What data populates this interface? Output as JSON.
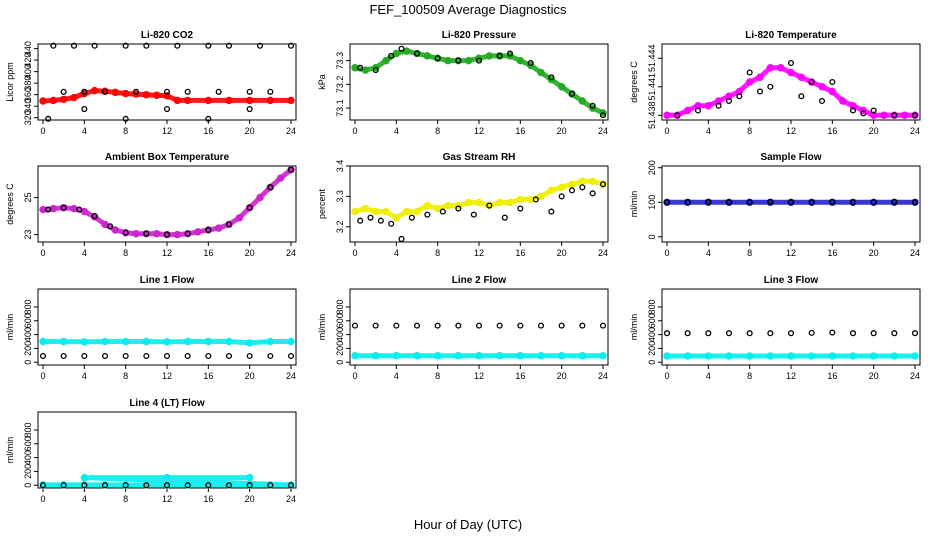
{
  "figure": {
    "title": "FEF_100509  Average Diagnostics",
    "xlabel": "Hour of Day (UTC)"
  },
  "chart_data": [
    {
      "type": "scatter",
      "title": "Li-820 CO2",
      "ylabel": "Licor ppm",
      "xlim": [
        0,
        24
      ],
      "ylim": [
        316,
        448
      ],
      "xticks": [
        0,
        4,
        8,
        12,
        16,
        20,
        24
      ],
      "yticks": [
        320,
        340,
        360,
        380,
        400,
        420,
        440
      ],
      "series": [
        {
          "name": "average",
          "color": "#ff0000",
          "x": [
            0,
            1,
            2,
            3,
            4,
            5,
            6,
            7,
            8,
            9,
            10,
            11,
            12,
            13,
            14,
            16,
            18,
            20,
            22,
            24
          ],
          "y": [
            349,
            350,
            352,
            355,
            362,
            367,
            366,
            364,
            362,
            361,
            360,
            359,
            358,
            350,
            350,
            350,
            350,
            350,
            350,
            350
          ]
        },
        {
          "name": "samples",
          "color": "#000000",
          "x": [
            1,
            2,
            3,
            4,
            5,
            6,
            8,
            9,
            10,
            12,
            13,
            14,
            16,
            17,
            18,
            20,
            21,
            22,
            24,
            4,
            12,
            20,
            0.5,
            8,
            16
          ],
          "y": [
            445,
            365,
            445,
            365,
            445,
            365,
            445,
            365,
            445,
            365,
            445,
            365,
            445,
            365,
            445,
            365,
            445,
            365,
            445,
            335,
            335,
            335,
            318,
            318,
            318
          ]
        }
      ]
    },
    {
      "type": "scatter",
      "title": "Li-820 Pressure",
      "ylabel": "kPa",
      "xlim": [
        0,
        24
      ],
      "ylim": [
        73.05,
        73.37
      ],
      "xticks": [
        0,
        4,
        8,
        12,
        16,
        20,
        24
      ],
      "yticks": [
        73.1,
        73.2,
        73.3
      ],
      "series": [
        {
          "name": "average",
          "color": "#22aa22",
          "x": [
            0,
            1,
            2,
            3,
            4,
            5,
            6,
            7,
            8,
            9,
            10,
            11,
            12,
            13,
            14,
            15,
            16,
            17,
            18,
            19,
            20,
            21,
            22,
            23,
            24
          ],
          "y": [
            73.27,
            73.26,
            73.27,
            73.3,
            73.33,
            73.34,
            73.33,
            73.32,
            73.31,
            73.3,
            73.3,
            73.3,
            73.31,
            73.32,
            73.32,
            73.32,
            73.3,
            73.28,
            73.25,
            73.22,
            73.19,
            73.16,
            73.13,
            73.1,
            73.08
          ]
        },
        {
          "name": "samples",
          "color": "#000000",
          "x": [
            0.5,
            2,
            3.5,
            4.5,
            6,
            8,
            10,
            12,
            14,
            15,
            17,
            19,
            21,
            23,
            24
          ],
          "y": [
            73.27,
            73.26,
            73.32,
            73.35,
            73.33,
            73.31,
            73.3,
            73.3,
            73.32,
            73.33,
            73.29,
            73.23,
            73.16,
            73.11,
            73.07
          ]
        }
      ]
    },
    {
      "type": "scatter",
      "title": "Li-820 Temperature",
      "ylabel": "degrees C",
      "xlim": [
        0,
        24
      ],
      "ylim": [
        51.4375,
        51.4455
      ],
      "xticks": [
        0,
        4,
        8,
        12,
        16,
        20,
        24
      ],
      "yticks": [
        51.438,
        51.441,
        51.444
      ],
      "series": [
        {
          "name": "average",
          "color": "#ff00ff",
          "x": [
            0,
            1,
            2,
            3,
            4,
            5,
            6,
            7,
            8,
            9,
            10,
            11,
            12,
            13,
            14,
            15,
            16,
            17,
            18,
            19,
            20,
            21,
            22,
            23,
            24
          ],
          "y": [
            51.438,
            51.438,
            51.4385,
            51.439,
            51.439,
            51.4395,
            51.44,
            51.4405,
            51.4415,
            51.442,
            51.443,
            51.443,
            51.4425,
            51.442,
            51.4415,
            51.441,
            51.4405,
            51.4395,
            51.439,
            51.4385,
            51.438,
            51.438,
            51.438,
            51.438,
            51.438
          ]
        },
        {
          "name": "samples",
          "color": "#000000",
          "x": [
            1,
            3,
            5,
            6,
            7,
            8,
            9,
            10,
            12,
            13,
            14,
            15,
            16,
            18,
            19,
            20,
            22,
            24
          ],
          "y": [
            51.438,
            51.4385,
            51.439,
            51.4395,
            51.44,
            51.4425,
            51.4405,
            51.441,
            51.4435,
            51.44,
            51.4415,
            51.4395,
            51.4415,
            51.4385,
            51.4382,
            51.4385,
            51.438,
            51.438
          ]
        }
      ]
    },
    {
      "type": "scatter",
      "title": "Ambient Box Temperature",
      "ylabel": "degrees C",
      "xlim": [
        0,
        24
      ],
      "ylim": [
        22.6,
        26.7
      ],
      "xticks": [
        0,
        4,
        8,
        12,
        16,
        20,
        24
      ],
      "yticks": [
        23,
        25
      ],
      "series": [
        {
          "name": "average",
          "color": "#cc22cc",
          "x": [
            0,
            1,
            2,
            3,
            4,
            5,
            6,
            7,
            8,
            9,
            10,
            11,
            12,
            13,
            14,
            15,
            16,
            17,
            18,
            19,
            20,
            21,
            22,
            23,
            24
          ],
          "y": [
            24.35,
            24.4,
            24.45,
            24.4,
            24.25,
            23.95,
            23.55,
            23.25,
            23.1,
            23.05,
            23.05,
            23.05,
            23.0,
            23.0,
            23.05,
            23.15,
            23.25,
            23.35,
            23.55,
            23.9,
            24.45,
            25.0,
            25.55,
            26.05,
            26.5
          ]
        },
        {
          "name": "samples",
          "color": "#000000",
          "x": [
            0.5,
            2,
            3.5,
            5,
            6.5,
            8,
            10,
            12,
            14,
            16,
            18,
            20,
            22,
            24
          ],
          "y": [
            24.35,
            24.45,
            24.35,
            24.0,
            23.45,
            23.1,
            23.05,
            23.0,
            23.05,
            23.25,
            23.55,
            24.45,
            25.55,
            26.5
          ]
        }
      ]
    },
    {
      "type": "scatter",
      "title": "Gas Stream RH",
      "ylabel": "percent",
      "xlim": [
        0,
        24
      ],
      "ylim": [
        3.15,
        3.4
      ],
      "xticks": [
        0,
        4,
        8,
        12,
        16,
        20,
        24
      ],
      "yticks": [
        3.2,
        3.3,
        3.4
      ],
      "series": [
        {
          "name": "average",
          "color": "#eeee00",
          "x": [
            0,
            1,
            2,
            3,
            4,
            5,
            6,
            7,
            8,
            9,
            10,
            11,
            12,
            13,
            14,
            15,
            16,
            17,
            18,
            19,
            20,
            21,
            22,
            23,
            24
          ],
          "y": [
            3.25,
            3.26,
            3.25,
            3.25,
            3.23,
            3.25,
            3.25,
            3.27,
            3.26,
            3.27,
            3.27,
            3.28,
            3.28,
            3.27,
            3.28,
            3.28,
            3.29,
            3.29,
            3.3,
            3.32,
            3.33,
            3.34,
            3.35,
            3.35,
            3.34
          ]
        },
        {
          "name": "samples",
          "color": "#000000",
          "x": [
            0.5,
            1.5,
            2.5,
            3.5,
            4.5,
            5.5,
            7,
            8.5,
            10,
            11.5,
            13,
            14.5,
            16,
            17.5,
            19,
            20,
            21,
            22,
            23,
            24
          ],
          "y": [
            3.22,
            3.23,
            3.22,
            3.21,
            3.16,
            3.23,
            3.24,
            3.25,
            3.26,
            3.24,
            3.27,
            3.23,
            3.26,
            3.29,
            3.25,
            3.3,
            3.32,
            3.33,
            3.31,
            3.34
          ]
        }
      ]
    },
    {
      "type": "scatter",
      "title": "Sample Flow",
      "ylabel": "ml/min",
      "xlim": [
        0,
        24
      ],
      "ylim": [
        -15,
        205
      ],
      "xticks": [
        0,
        4,
        8,
        12,
        16,
        20,
        24
      ],
      "yticks": [
        0,
        100,
        200
      ],
      "series": [
        {
          "name": "average",
          "color": "#2222cc",
          "x": [
            0,
            2,
            4,
            6,
            8,
            10,
            12,
            14,
            16,
            18,
            20,
            22,
            24
          ],
          "y": [
            100,
            100,
            100,
            100,
            100,
            100,
            100,
            100,
            100,
            100,
            100,
            100,
            100
          ]
        },
        {
          "name": "samples",
          "color": "#000000",
          "x": [
            0,
            2,
            4,
            6,
            8,
            10,
            12,
            14,
            16,
            18,
            20,
            22,
            24
          ],
          "y": [
            100,
            100,
            101,
            100,
            100,
            101,
            100,
            100,
            101,
            100,
            100,
            101,
            100
          ]
        }
      ]
    },
    {
      "type": "scatter",
      "title": "Line 1 Flow",
      "ylabel": "ml/min",
      "xlim": [
        0,
        24
      ],
      "ylim": [
        -40,
        1060
      ],
      "xticks": [
        0,
        4,
        8,
        12,
        16,
        20,
        24
      ],
      "yticks": [
        0,
        200,
        400,
        600,
        800
      ],
      "series": [
        {
          "name": "cyan",
          "color": "#00eeee",
          "x": [
            0,
            2,
            4,
            6,
            8,
            10,
            12,
            14,
            16,
            18,
            20,
            22,
            24
          ],
          "y": [
            300,
            300,
            295,
            300,
            300,
            300,
            295,
            300,
            300,
            300,
            280,
            300,
            300
          ]
        },
        {
          "name": "black",
          "color": "#000000",
          "x": [
            0,
            2,
            4,
            6,
            8,
            10,
            12,
            14,
            16,
            18,
            20,
            22,
            24
          ],
          "y": [
            90,
            90,
            90,
            90,
            90,
            90,
            90,
            90,
            90,
            90,
            90,
            90,
            90
          ]
        }
      ]
    },
    {
      "type": "scatter",
      "title": "Line 2 Flow",
      "ylabel": "ml/min",
      "xlim": [
        0,
        24
      ],
      "ylim": [
        -40,
        1060
      ],
      "xticks": [
        0,
        4,
        8,
        12,
        16,
        20,
        24
      ],
      "yticks": [
        0,
        200,
        400,
        600,
        800
      ],
      "series": [
        {
          "name": "cyan",
          "color": "#00eeee",
          "x": [
            0,
            2,
            4,
            6,
            8,
            10,
            12,
            14,
            16,
            18,
            20,
            22,
            24
          ],
          "y": [
            95,
            95,
            95,
            95,
            95,
            95,
            95,
            95,
            95,
            95,
            95,
            95,
            95
          ]
        },
        {
          "name": "black",
          "color": "#000000",
          "x": [
            0,
            2,
            4,
            6,
            8,
            10,
            12,
            14,
            16,
            18,
            20,
            22,
            24
          ],
          "y": [
            530,
            530,
            530,
            530,
            530,
            530,
            530,
            530,
            530,
            530,
            530,
            530,
            530
          ]
        }
      ]
    },
    {
      "type": "scatter",
      "title": "Line 3 Flow",
      "ylabel": "ml/min",
      "xlim": [
        0,
        24
      ],
      "ylim": [
        -40,
        1060
      ],
      "xticks": [
        0,
        4,
        8,
        12,
        16,
        20,
        24
      ],
      "yticks": [
        0,
        200,
        400,
        600,
        800
      ],
      "series": [
        {
          "name": "cyan",
          "color": "#00eeee",
          "x": [
            0,
            2,
            4,
            6,
            8,
            10,
            12,
            14,
            16,
            18,
            20,
            22,
            24
          ],
          "y": [
            90,
            90,
            90,
            90,
            90,
            90,
            90,
            90,
            90,
            90,
            90,
            90,
            90
          ]
        },
        {
          "name": "black",
          "color": "#000000",
          "x": [
            0,
            2,
            4,
            6,
            8,
            10,
            12,
            14,
            16,
            18,
            20,
            22,
            24
          ],
          "y": [
            420,
            420,
            420,
            420,
            420,
            420,
            420,
            425,
            430,
            420,
            420,
            420,
            420
          ]
        }
      ]
    },
    {
      "type": "scatter",
      "title": "Line 4 (LT) Flow",
      "ylabel": "ml/min",
      "xlim": [
        0,
        24
      ],
      "ylim": [
        -40,
        1060
      ],
      "xticks": [
        0,
        4,
        8,
        12,
        16,
        20,
        24
      ],
      "yticks": [
        0,
        200,
        400,
        600,
        800
      ],
      "series": [
        {
          "name": "cyan",
          "color": "#00eeee",
          "x": [
            0,
            2,
            4,
            6,
            8,
            10,
            12,
            14,
            16,
            18,
            20,
            22,
            24,
            4,
            12,
            20
          ],
          "y": [
            5,
            5,
            5,
            5,
            5,
            5,
            5,
            5,
            5,
            5,
            5,
            5,
            5,
            110,
            110,
            110
          ]
        },
        {
          "name": "black",
          "color": "#000000",
          "x": [
            0,
            2,
            4,
            6,
            8,
            10,
            12,
            14,
            16,
            18,
            20,
            22,
            24
          ],
          "y": [
            0,
            0,
            0,
            0,
            0,
            0,
            0,
            0,
            0,
            0,
            0,
            0,
            0
          ]
        }
      ]
    }
  ]
}
